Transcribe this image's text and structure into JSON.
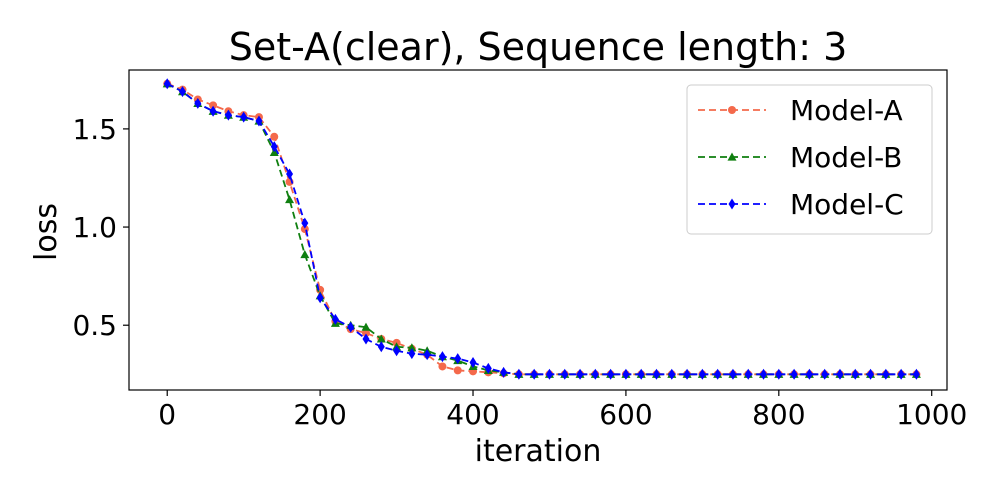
{
  "chart_data": {
    "type": "line",
    "title": "Set-A(clear), Sequence length: 3",
    "xlabel": "iteration",
    "ylabel": "loss",
    "xlim": [
      -50,
      1020
    ],
    "ylim": [
      0.17,
      1.8
    ],
    "xticks": [
      0,
      200,
      400,
      600,
      800,
      1000
    ],
    "yticks": [
      0.5,
      1.0,
      1.5
    ],
    "xtick_labels": [
      "0",
      "200",
      "400",
      "600",
      "800",
      "1000"
    ],
    "ytick_labels": [
      "0.5",
      "1.0",
      "1.5"
    ],
    "grid": false,
    "legend_position": "top-right",
    "series": [
      {
        "name": "Model-A",
        "color": "#f4694b",
        "marker": "circle",
        "linestyle": "dashed",
        "x": [
          0,
          20,
          40,
          60,
          80,
          100,
          120,
          140,
          160,
          180,
          200,
          220,
          240,
          260,
          280,
          300,
          320,
          340,
          360,
          380,
          400,
          420,
          440,
          460,
          480,
          500,
          520,
          540,
          560,
          580,
          600,
          620,
          640,
          660,
          680,
          700,
          720,
          740,
          760,
          780,
          800,
          820,
          840,
          860,
          880,
          900,
          920,
          940,
          960,
          980
        ],
        "y": [
          1.73,
          1.7,
          1.65,
          1.62,
          1.59,
          1.57,
          1.56,
          1.46,
          1.23,
          0.99,
          0.68,
          0.52,
          0.48,
          0.46,
          0.43,
          0.41,
          0.38,
          0.35,
          0.29,
          0.27,
          0.265,
          0.26,
          0.255,
          0.25,
          0.25,
          0.25,
          0.25,
          0.25,
          0.25,
          0.25,
          0.25,
          0.25,
          0.25,
          0.25,
          0.25,
          0.25,
          0.25,
          0.25,
          0.25,
          0.25,
          0.25,
          0.25,
          0.25,
          0.25,
          0.25,
          0.25,
          0.25,
          0.25,
          0.25,
          0.25
        ]
      },
      {
        "name": "Model-B",
        "color": "#0f7f0f",
        "marker": "triangle",
        "linestyle": "dashed",
        "x": [
          0,
          20,
          40,
          60,
          80,
          100,
          120,
          140,
          160,
          180,
          200,
          220,
          240,
          260,
          280,
          300,
          320,
          340,
          360,
          380,
          400,
          420,
          440,
          460,
          480,
          500,
          520,
          540,
          560,
          580,
          600,
          620,
          640,
          660,
          680,
          700,
          720,
          740,
          760,
          780,
          800,
          820,
          840,
          860,
          880,
          900,
          920,
          940,
          960,
          980
        ],
        "y": [
          1.73,
          1.69,
          1.63,
          1.59,
          1.57,
          1.56,
          1.54,
          1.38,
          1.14,
          0.86,
          0.65,
          0.51,
          0.5,
          0.49,
          0.43,
          0.39,
          0.385,
          0.37,
          0.34,
          0.32,
          0.29,
          0.27,
          0.26,
          0.25,
          0.25,
          0.25,
          0.25,
          0.25,
          0.25,
          0.25,
          0.25,
          0.25,
          0.25,
          0.25,
          0.25,
          0.25,
          0.25,
          0.25,
          0.25,
          0.25,
          0.25,
          0.25,
          0.25,
          0.25,
          0.25,
          0.25,
          0.25,
          0.25,
          0.25,
          0.25
        ]
      },
      {
        "name": "Model-C",
        "color": "#0000ff",
        "marker": "diamond",
        "linestyle": "dashed",
        "x": [
          0,
          20,
          40,
          60,
          80,
          100,
          120,
          140,
          160,
          180,
          200,
          220,
          240,
          260,
          280,
          300,
          320,
          340,
          360,
          380,
          400,
          420,
          440,
          460,
          480,
          500,
          520,
          540,
          560,
          580,
          600,
          620,
          640,
          660,
          680,
          700,
          720,
          740,
          760,
          780,
          800,
          820,
          840,
          860,
          880,
          900,
          920,
          940,
          960,
          980
        ],
        "y": [
          1.73,
          1.69,
          1.63,
          1.59,
          1.57,
          1.56,
          1.54,
          1.41,
          1.27,
          1.02,
          0.64,
          0.53,
          0.49,
          0.43,
          0.39,
          0.37,
          0.355,
          0.35,
          0.34,
          0.33,
          0.31,
          0.28,
          0.26,
          0.25,
          0.25,
          0.25,
          0.25,
          0.25,
          0.25,
          0.25,
          0.25,
          0.25,
          0.25,
          0.25,
          0.25,
          0.25,
          0.25,
          0.25,
          0.25,
          0.25,
          0.25,
          0.25,
          0.25,
          0.25,
          0.25,
          0.25,
          0.25,
          0.25,
          0.25,
          0.25
        ]
      }
    ]
  }
}
